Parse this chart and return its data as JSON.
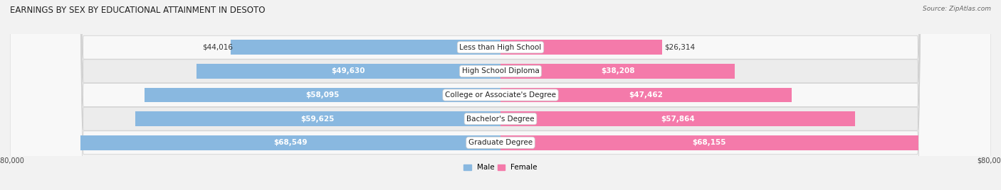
{
  "title": "EARNINGS BY SEX BY EDUCATIONAL ATTAINMENT IN DESOTO",
  "source": "Source: ZipAtlas.com",
  "categories": [
    "Less than High School",
    "High School Diploma",
    "College or Associate's Degree",
    "Bachelor's Degree",
    "Graduate Degree"
  ],
  "male_values": [
    44016,
    49630,
    58095,
    59625,
    68549
  ],
  "female_values": [
    26314,
    38208,
    47462,
    57864,
    68155
  ],
  "max_val": 80000,
  "male_color": "#89b8e0",
  "female_color": "#f47aaa",
  "bg_color": "#f2f2f2",
  "row_colors": [
    "#ffffff",
    "#f0f0f0",
    "#ffffff",
    "#f0f0f0",
    "#ffffff"
  ],
  "title_fontsize": 8.5,
  "val_fontsize": 7.5,
  "cat_fontsize": 7.5,
  "axis_fontsize": 7,
  "bar_height": 0.62,
  "legend_male": "Male",
  "legend_female": "Female"
}
